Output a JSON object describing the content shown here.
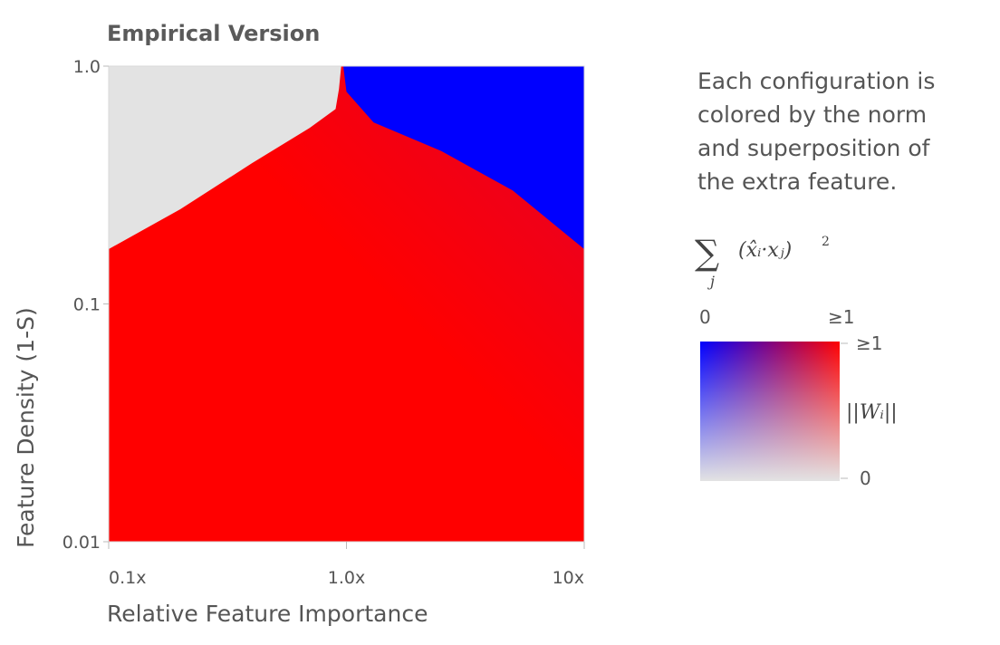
{
  "colors": {
    "background": "#ffffff",
    "off_state": "#e3e3e3",
    "superposition_color": "#0000ff",
    "norm_color": "#ff0000",
    "text": "#555555"
  },
  "chart_data": {
    "type": "heatmap",
    "title": "Empirical Version",
    "xlabel": "Relative Feature Importance",
    "ylabel": "Feature Density (1-S)",
    "xscale": "log",
    "yscale": "log",
    "xlim": [
      0.1,
      10
    ],
    "ylim": [
      0.01,
      1
    ],
    "x_ticks": [
      {
        "value": 0.1,
        "label": "0.1x"
      },
      {
        "value": 1,
        "label": "1.0x"
      },
      {
        "value": 10,
        "label": "10x"
      }
    ],
    "y_ticks": [
      {
        "value": 1,
        "label": "1.0"
      },
      {
        "value": 0.1,
        "label": "0.1"
      },
      {
        "value": 0.01,
        "label": "0.01"
      }
    ],
    "regions": [
      {
        "color": "red",
        "description": "extra feature represented with full norm, no superposition (most of the plot)"
      },
      {
        "color": "light gray",
        "description": "extra feature not represented (upper left)"
      },
      {
        "color": "blue",
        "description": "extra feature in superposition (upper right)"
      }
    ],
    "boundary_red_gray": [
      [
        0.1,
        0.17
      ],
      [
        0.2,
        0.25
      ],
      [
        0.4,
        0.39
      ],
      [
        0.7,
        0.55
      ],
      [
        0.9,
        0.66
      ],
      [
        0.93,
        0.8
      ],
      [
        0.95,
        1.0
      ]
    ],
    "boundary_red_blue": [
      [
        0.97,
        1.0
      ],
      [
        1.0,
        0.78
      ],
      [
        1.3,
        0.58
      ],
      [
        2.5,
        0.44
      ],
      [
        5,
        0.3
      ],
      [
        10,
        0.17
      ]
    ]
  },
  "legend": {
    "caption_lines": [
      "Each configuration is",
      "colored by the norm",
      "and superposition of",
      "the extra feature."
    ],
    "superposition_formula": {
      "sum_symbol": "∑",
      "index": "j",
      "term": "(x̂ᵢ·xⱼ)",
      "power": "2"
    },
    "top_axis": {
      "min_label": "0",
      "max_label": "≥1"
    },
    "right_axis": {
      "max_label": "≥1",
      "min_label": "0"
    },
    "norm_formula": "||Wᵢ||"
  }
}
